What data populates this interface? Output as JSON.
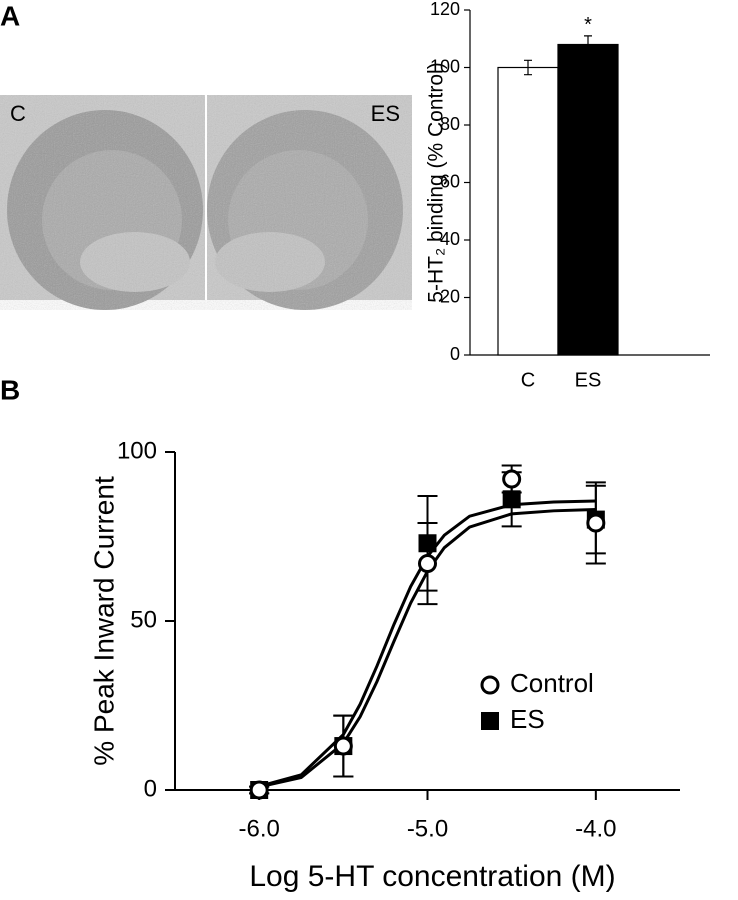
{
  "figure": {
    "panel_labels": [
      "A",
      "B"
    ],
    "image_labels": [
      "C",
      "ES"
    ]
  },
  "chart_data": [
    {
      "type": "bar",
      "ylabel": "5-HT₂ binding (% Control)",
      "categories": [
        "C",
        "ES"
      ],
      "values": [
        100,
        108
      ],
      "errors": [
        2.5,
        3
      ],
      "colors": [
        "#ffffff",
        "#000000"
      ],
      "annotations": [
        null,
        "*"
      ],
      "ylim": [
        0,
        120
      ],
      "yticks": [
        0,
        20,
        40,
        60,
        80,
        100,
        120
      ]
    },
    {
      "type": "scatter",
      "xlabel": "Log 5-HT concentration (M)",
      "ylabel": "% Peak Inward Current",
      "x": [
        -6,
        -5.5,
        -5,
        -4.5,
        -4
      ],
      "series": [
        {
          "name": "Control",
          "color": "#000000",
          "marker": "open-circle",
          "values": [
            0,
            13,
            67,
            92,
            79
          ],
          "errors": [
            1,
            9,
            12,
            4,
            12
          ],
          "fit_x": [
            -6,
            -5.75,
            -5.5,
            -5.4,
            -5.3,
            -5.2,
            -5.1,
            -5,
            -4.9,
            -4.75,
            -4.5,
            -4.25,
            -4
          ],
          "fit_values": [
            0.9,
            3.7,
            13.8,
            21.7,
            32.1,
            43.9,
            55.3,
            64.7,
            71.7,
            77.8,
            81.7,
            82.6,
            83
          ]
        },
        {
          "name": "ES",
          "color": "#000000",
          "marker": "filled-square",
          "values": [
            0,
            13,
            73,
            86,
            80
          ],
          "errors": [
            1,
            9,
            14,
            8,
            10
          ],
          "fit_x": [
            -6,
            -5.75,
            -5.5,
            -5.4,
            -5.3,
            -5.2,
            -5.1,
            -5,
            -4.9,
            -4.75,
            -4.5,
            -4.25,
            -4
          ],
          "fit_values": [
            1.1,
            4.5,
            16.4,
            25.4,
            36.7,
            48.9,
            60.2,
            69.1,
            75.4,
            81,
            84.4,
            85.2,
            85.5
          ]
        }
      ],
      "xlim": [
        -6.5,
        -3.5
      ],
      "xticks": [
        {
          "value": -6,
          "label": "-6.0"
        },
        {
          "value": -5,
          "label": "-5.0"
        },
        {
          "value": -4,
          "label": "-4.0"
        }
      ],
      "ylim": [
        0,
        100
      ],
      "yticks": [
        0,
        50,
        100
      ],
      "legend": "lower right"
    }
  ]
}
